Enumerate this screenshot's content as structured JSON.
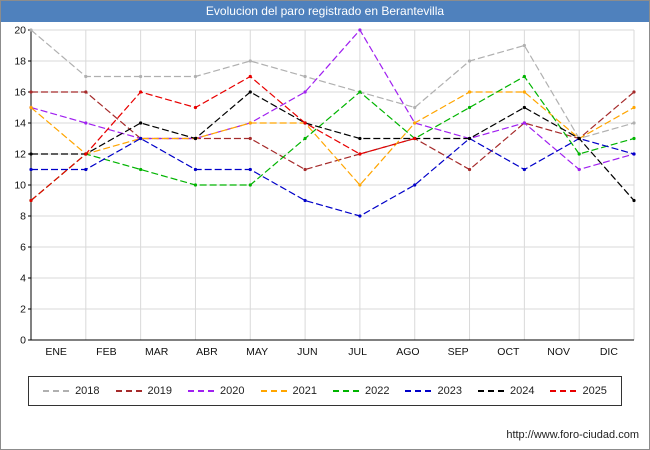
{
  "header": {
    "title": "Evolucion del paro registrado en Berantevilla"
  },
  "footer": {
    "link_label": "http://www.foro-ciudad.com"
  },
  "chart_data": {
    "type": "line",
    "title": "Evolucion del paro registrado en Berantevilla",
    "xlabel": "",
    "ylabel": "",
    "categories": [
      "ENE",
      "FEB",
      "MAR",
      "ABR",
      "MAY",
      "JUN",
      "JUL",
      "AGO",
      "SEP",
      "OCT",
      "NOV",
      "DIC"
    ],
    "ylim": [
      0,
      20
    ],
    "ytick_step": 2,
    "grid": true,
    "legend_position": "bottom",
    "title_bar_color": "#4f81bd",
    "grid_color": "#d9d9d9",
    "series": [
      {
        "name": "2018",
        "color": "#b0b0b0",
        "values": [
          20,
          17,
          17,
          17,
          18,
          17,
          16,
          15,
          18,
          19,
          13,
          14
        ]
      },
      {
        "name": "2019",
        "color": "#a52a2a",
        "values": [
          16,
          16,
          13,
          13,
          13,
          11,
          12,
          13,
          11,
          14,
          13,
          16
        ]
      },
      {
        "name": "2020",
        "color": "#a020f0",
        "values": [
          15,
          14,
          13,
          13,
          14,
          16,
          20,
          14,
          13,
          14,
          11,
          12
        ]
      },
      {
        "name": "2021",
        "color": "#ffa500",
        "values": [
          15,
          12,
          13,
          13,
          14,
          14,
          10,
          14,
          16,
          16,
          13,
          15
        ]
      },
      {
        "name": "2022",
        "color": "#00b400",
        "values": [
          9,
          12,
          11,
          10,
          10,
          13,
          16,
          13,
          15,
          17,
          12,
          13
        ]
      },
      {
        "name": "2023",
        "color": "#0000c8",
        "values": [
          11,
          11,
          13,
          11,
          11,
          9,
          8,
          10,
          13,
          11,
          13,
          12
        ]
      },
      {
        "name": "2024",
        "color": "#000000",
        "values": [
          12,
          12,
          14,
          13,
          16,
          14,
          13,
          13,
          13,
          15,
          13,
          9
        ]
      },
      {
        "name": "2025",
        "color": "#e80000",
        "values": [
          9,
          12,
          16,
          15,
          17,
          14,
          12,
          13
        ]
      }
    ]
  }
}
